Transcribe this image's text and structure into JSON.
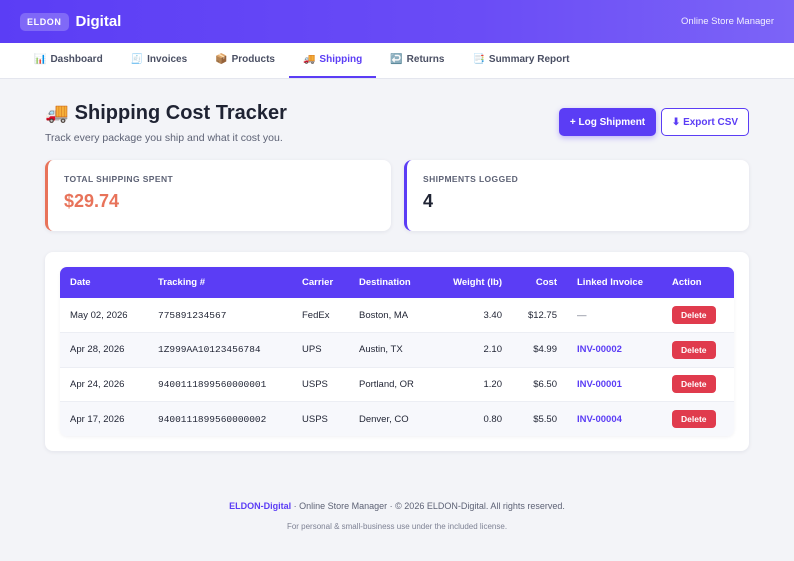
{
  "topbar": {
    "badge": "ELDON",
    "brand": "Digital",
    "right_text": "Online Store Manager"
  },
  "nav": [
    {
      "icon": "📊",
      "label": "Dashboard"
    },
    {
      "icon": "🧾",
      "label": "Invoices"
    },
    {
      "icon": "📦",
      "label": "Products"
    },
    {
      "icon": "🚚",
      "label": "Shipping",
      "active": true
    },
    {
      "icon": "↩️",
      "label": "Returns"
    },
    {
      "icon": "📑",
      "label": "Summary Report"
    }
  ],
  "page": {
    "icon": "🚚",
    "title": "Shipping Cost Tracker",
    "subtitle": "Track every package you ship and what it cost you."
  },
  "actions": {
    "log_label": "+ Log Shipment",
    "export_label": "⬇ Export CSV"
  },
  "stats": {
    "total_label": "TOTAL SHIPPING SPENT",
    "total_value": "$29.74",
    "count_label": "SHIPMENTS LOGGED",
    "count_value": "4"
  },
  "table": {
    "headers": [
      "Date",
      "Tracking #",
      "Carrier",
      "Destination",
      "Weight (lb)",
      "Cost",
      "Linked Invoice",
      "Action"
    ],
    "rows": [
      {
        "date": "May 02, 2026",
        "tracking": "775891234567",
        "carrier": "FedEx",
        "destination": "Boston, MA",
        "weight": "3.40",
        "cost": "$12.75",
        "invoice": "—",
        "action": "Delete"
      },
      {
        "date": "Apr 28, 2026",
        "tracking": "1Z999AA10123456784",
        "carrier": "UPS",
        "destination": "Austin, TX",
        "weight": "2.10",
        "cost": "$4.99",
        "invoice": "INV-00002",
        "action": "Delete"
      },
      {
        "date": "Apr 24, 2026",
        "tracking": "9400111899560000001",
        "carrier": "USPS",
        "destination": "Portland, OR",
        "weight": "1.20",
        "cost": "$6.50",
        "invoice": "INV-00001",
        "action": "Delete"
      },
      {
        "date": "Apr 17, 2026",
        "tracking": "9400111899560000002",
        "carrier": "USPS",
        "destination": "Denver, CO",
        "weight": "0.80",
        "cost": "$5.50",
        "invoice": "INV-00004",
        "action": "Delete"
      }
    ]
  },
  "footer": {
    "brand": "ELDON-Digital",
    "line1_rest": " · Online Store Manager · © 2026 ELDON-Digital. All rights reserved.",
    "line2": "For personal & small-business use under the included license."
  },
  "colors": {
    "accent": "#5b3df5",
    "spent": "#e8735a",
    "danger": "#e03b4d"
  }
}
